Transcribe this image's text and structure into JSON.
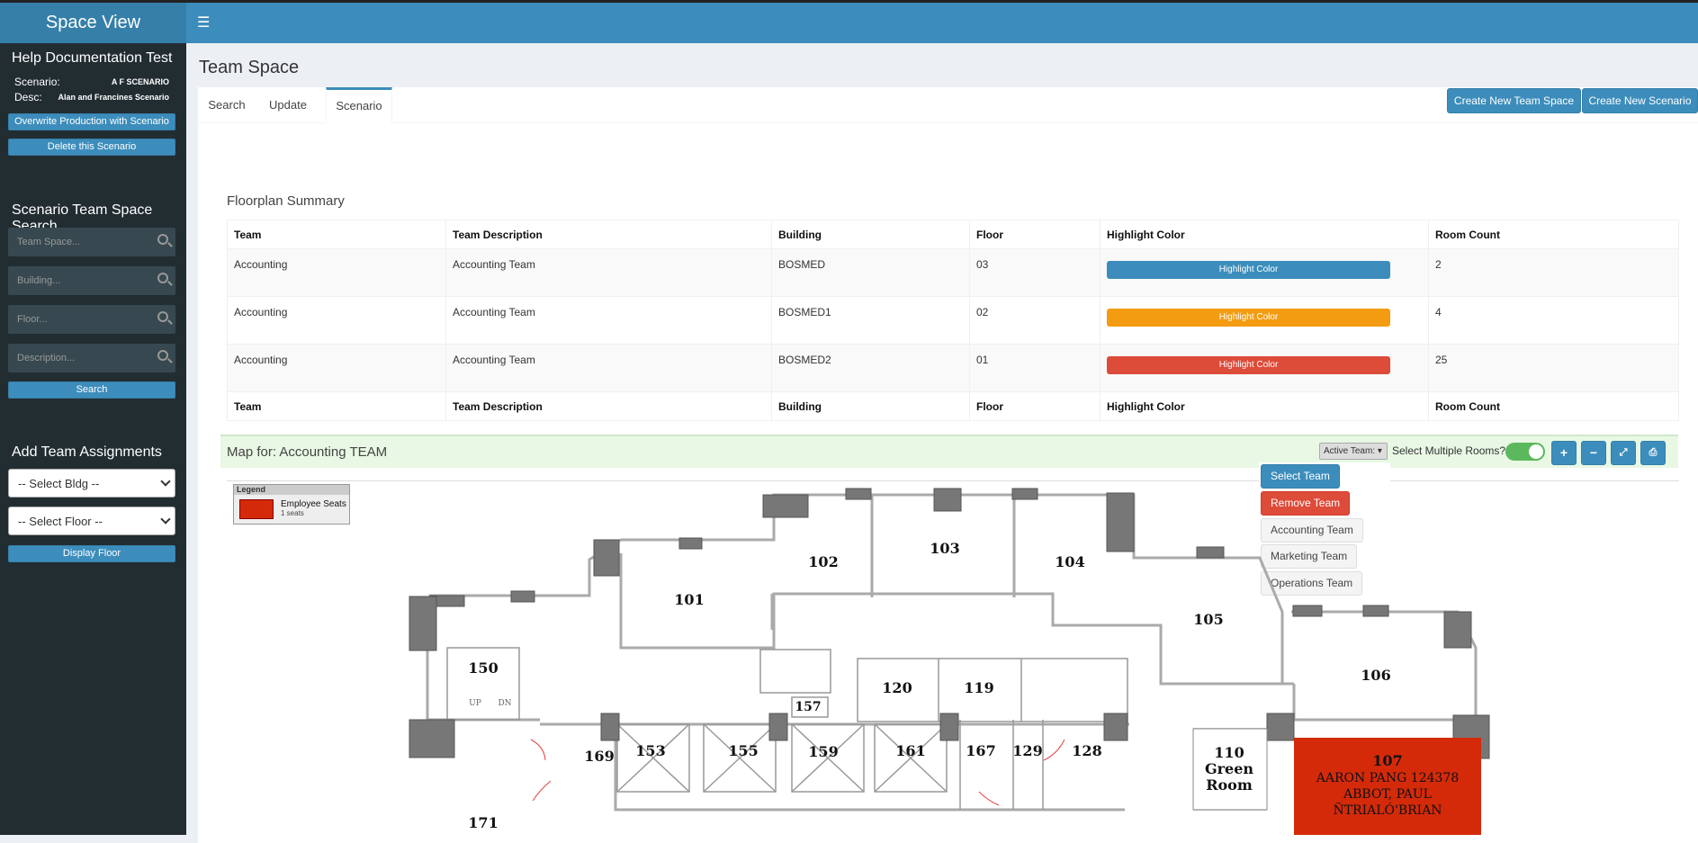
{
  "app": {
    "title": "Space View"
  },
  "sidebar": {
    "heading": "Help Documentation Test",
    "scenario_label": "Scenario:",
    "scenario_value": "A F SCENARIO",
    "desc_label": "Desc:",
    "desc_value": "Alan and Francines Scenario",
    "overwrite_btn": "Overwrite Production with Scenario",
    "delete_btn": "Delete this Scenario",
    "search_heading": "Scenario Team Space Search",
    "placeholders": {
      "team": "Team Space...",
      "building": "Building...",
      "floor": "Floor...",
      "description": "Description..."
    },
    "search_btn": "Search",
    "assign_heading": "Add Team Assignments",
    "select_bldg": "-- Select Bldg --",
    "select_floor": "-- Select Floor --",
    "display_btn": "Display Floor"
  },
  "page": {
    "title": "Team Space",
    "tabs": [
      "Search",
      "Update",
      "Scenario"
    ],
    "active_tab": "Scenario",
    "create_team_space": "Create New Team Space",
    "create_scenario": "Create New Scenario"
  },
  "summary": {
    "title": "Floorplan Summary",
    "headers": [
      "Team",
      "Team Description",
      "Building",
      "Floor",
      "Highlight Color",
      "Room Count"
    ],
    "rows": [
      {
        "team": "Accounting",
        "desc": "Accounting Team",
        "building": "BOSMED",
        "floor": "03",
        "color_label": "Highlight Color",
        "color": "#3c8dbc",
        "count": "2"
      },
      {
        "team": "Accounting",
        "desc": "Accounting Team",
        "building": "BOSMED1",
        "floor": "02",
        "color_label": "Highlight Color",
        "color": "#f39c12",
        "count": "4"
      },
      {
        "team": "Accounting",
        "desc": "Accounting Team",
        "building": "BOSMED2",
        "floor": "01",
        "color_label": "Highlight Color",
        "color": "#dd4b39",
        "count": "25"
      }
    ]
  },
  "map": {
    "title": "Map for: Accounting TEAM",
    "active_team": "Active Team:",
    "select_multiple": "Select Multiple Rooms?",
    "buttons": [
      "plus-icon",
      "minus-icon",
      "expand-icon",
      "print-icon"
    ],
    "dropdown": {
      "select": "Select Team",
      "remove": "Remove Team",
      "teams": [
        "Accounting Team",
        "Marketing Team",
        "Operations Team"
      ]
    },
    "legend": {
      "title": "Legend",
      "item": "Employee Seats",
      "sub": "1 seats"
    },
    "rooms": {
      "r101": "101",
      "r102": "102",
      "r103": "103",
      "r104": "104",
      "r105": "105",
      "r106": "106",
      "r150": "150",
      "r120": "120",
      "r119": "119",
      "r157": "157",
      "r153": "153",
      "r155": "155",
      "r159": "159",
      "r161": "161",
      "r167": "167",
      "r129": "129",
      "r128": "128",
      "r169": "169",
      "r171": "171",
      "r110a": "110",
      "r110b": "Green",
      "r110c": "Room",
      "r107": "107",
      "r107a": "AARON PANG 124378",
      "r107b": "ABBOT, PAUL",
      "r107c": "ÑTRIALÓ'BRIAN",
      "up": "UP",
      "dn": "DN"
    }
  }
}
